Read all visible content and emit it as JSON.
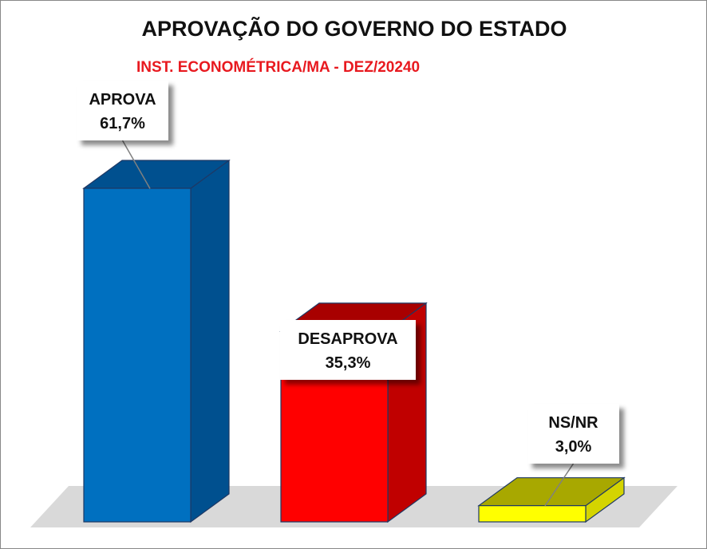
{
  "chart_data": {
    "type": "bar",
    "style": "3d-column",
    "title": "APROVAÇÃO DO GOVERNO DO ESTADO",
    "subtitle": "INST. ECONOMÉTRICA/MA - DEZ/20240",
    "categories": [
      "APROVA",
      "DESAPROVA",
      "NS/NR"
    ],
    "values": [
      61.7,
      35.3,
      3.0
    ],
    "data_labels": [
      "61,7%",
      "35,3%",
      "3,0%"
    ],
    "unit": "%",
    "ylim": [
      0,
      61.7
    ],
    "grid": false,
    "legend": "none",
    "colors": {
      "front": [
        "#0070c0",
        "#ff0000",
        "#ffff00"
      ],
      "top": [
        "#00508f",
        "#a80000",
        "#a8a800"
      ],
      "side": [
        "#00508f",
        "#c00000",
        "#d4d400"
      ],
      "subtitle": "#e8191f",
      "floor": "#d9d9d9"
    }
  }
}
